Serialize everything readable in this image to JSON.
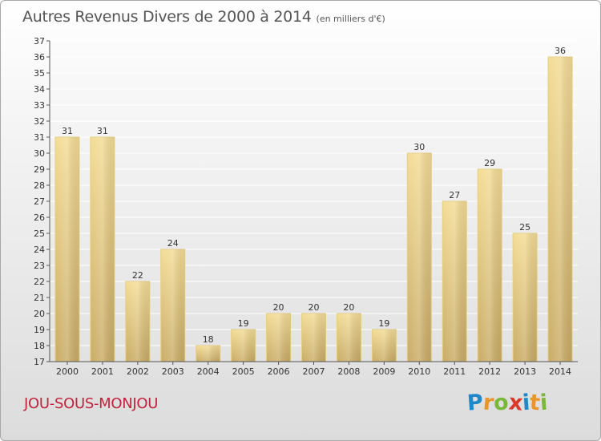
{
  "title": "Autres Revenus Divers de 2000 à 2014",
  "unit": "(en milliers d'€)",
  "commune": "JOU-SOUS-MONJOU",
  "logo": {
    "letters": [
      "P",
      "r",
      "o",
      "x",
      "i",
      "t",
      "i"
    ],
    "colors": [
      "#1e88c8",
      "#e8962a",
      "#7ab83a",
      "#d93a2b",
      "#1e88c8",
      "#e8962a",
      "#7ab83a"
    ]
  },
  "colors": {
    "bar_light": "#f3dc95",
    "bar_dark": "#c9ac66",
    "bar_edge": "#e6cf86",
    "grid": "#ffffff",
    "text": "#333333",
    "commune": "#c0233b"
  },
  "chart_data": {
    "type": "bar",
    "categories": [
      "2000",
      "2001",
      "2002",
      "2003",
      "2004",
      "2005",
      "2006",
      "2007",
      "2008",
      "2009",
      "2010",
      "2011",
      "2012",
      "2013",
      "2014"
    ],
    "values": [
      31,
      31,
      22,
      24,
      18,
      19,
      20,
      20,
      20,
      19,
      30,
      27,
      29,
      25,
      36
    ],
    "ylim": [
      17,
      37
    ],
    "yticks": [
      17,
      18,
      19,
      20,
      21,
      22,
      23,
      24,
      25,
      26,
      27,
      28,
      29,
      30,
      31,
      32,
      33,
      34,
      35,
      36,
      37
    ],
    "grid": true,
    "data_labels": true
  }
}
